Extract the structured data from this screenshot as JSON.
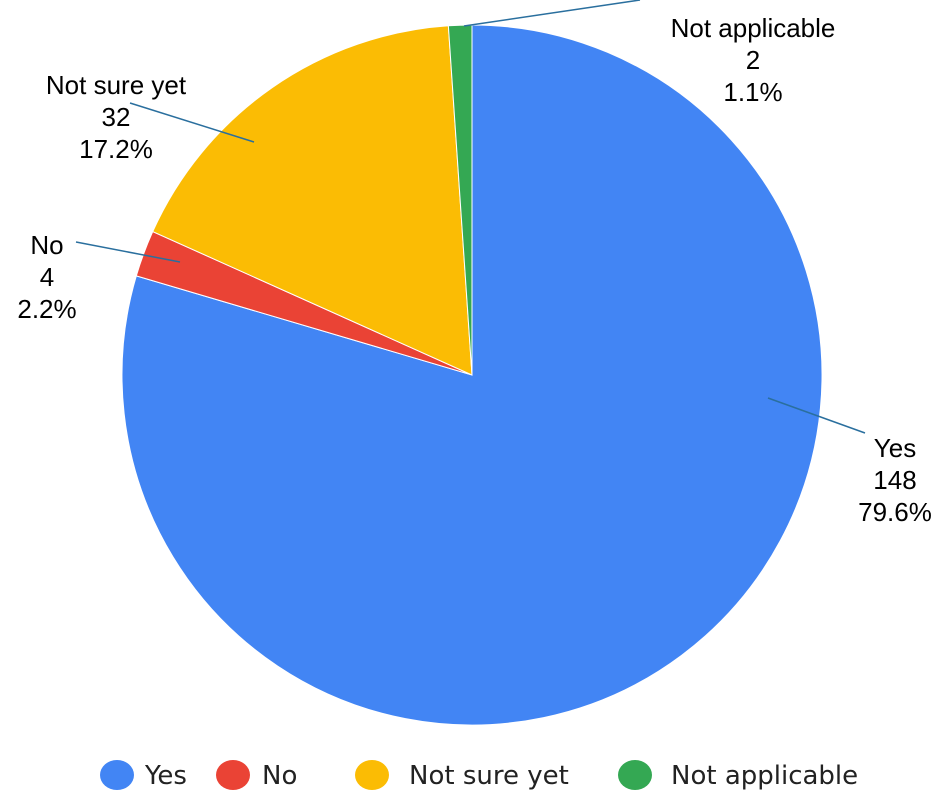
{
  "chart_data": {
    "type": "pie",
    "title": "",
    "start_category": "Yes",
    "direction": "clockwise",
    "slices": [
      {
        "label": "Yes",
        "value": 148,
        "percent": "79.6%",
        "value_text": "148",
        "color": "#4285F4"
      },
      {
        "label": "No",
        "value": 4,
        "percent": "2.2%",
        "value_text": "4",
        "color": "#EA4335"
      },
      {
        "label": "Not sure yet",
        "value": 32,
        "percent": "17.2%",
        "value_text": "32",
        "color": "#FBBC04"
      },
      {
        "label": "Not applicable",
        "value": 2,
        "percent": "1.1%",
        "value_text": "2",
        "color": "#34A853"
      }
    ],
    "legend": {
      "placement": "bottom",
      "entries": [
        "Yes",
        "No",
        "Not sure yet",
        "Not applicable"
      ]
    }
  }
}
